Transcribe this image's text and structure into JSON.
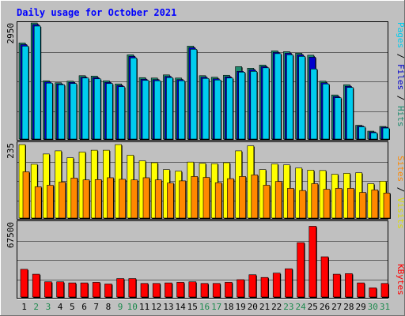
{
  "title": "Daily usage for October 2021",
  "colors": {
    "background": "#c0c0c0",
    "panel": "#c0c0c0",
    "title": "#0000ff",
    "hits": "#1e8a6e",
    "files": "#0000cc",
    "pages": "#00ccee",
    "visits": "#ffff00",
    "sites": "#ff8800",
    "kbytes": "#ff0000",
    "weekday_label": "#000000",
    "weekend_label": "#1e8a4e"
  },
  "right_labels": {
    "top": [
      {
        "text": "Pages",
        "color": "#00ccee"
      },
      {
        "text": " / ",
        "color": "#000000"
      },
      {
        "text": "Files",
        "color": "#0000cc"
      },
      {
        "text": " / ",
        "color": "#000000"
      },
      {
        "text": "Hits",
        "color": "#1e8a6e"
      }
    ],
    "middle": [
      {
        "text": "Sites",
        "color": "#ff8800"
      },
      {
        "text": " / ",
        "color": "#000000"
      },
      {
        "text": "Visits",
        "color": "#dddd00"
      }
    ],
    "bottom": [
      {
        "text": "KBytes",
        "color": "#ff0000"
      }
    ]
  },
  "chart_data": [
    {
      "type": "bar",
      "title": "Daily usage for October 2021",
      "categories": [
        "1",
        "2",
        "3",
        "4",
        "5",
        "6",
        "7",
        "8",
        "9",
        "10",
        "11",
        "12",
        "13",
        "14",
        "15",
        "16",
        "17",
        "18",
        "19",
        "20",
        "21",
        "22",
        "23",
        "24",
        "25",
        "26",
        "27",
        "28",
        "29",
        "30",
        "31"
      ],
      "weekend_days": [
        "2",
        "3",
        "9",
        "10",
        "16",
        "17",
        "23",
        "24",
        "30",
        "31"
      ],
      "ymax_label": "2950",
      "ylim": [
        0,
        2950
      ],
      "series": [
        {
          "name": "Hits",
          "values": [
            2440,
            2950,
            1480,
            1430,
            1470,
            1610,
            1600,
            1480,
            1400,
            2140,
            1560,
            1550,
            1630,
            1550,
            2360,
            1610,
            1570,
            1620,
            1840,
            1800,
            1880,
            2240,
            2220,
            2180,
            2130,
            1470,
            1120,
            1380,
            350,
            200,
            320
          ]
        },
        {
          "name": "Files",
          "values": [
            2400,
            2910,
            1450,
            1400,
            1440,
            1570,
            1560,
            1440,
            1360,
            2100,
            1520,
            1510,
            1590,
            1510,
            2320,
            1570,
            1530,
            1580,
            1720,
            1760,
            1840,
            2200,
            2180,
            2140,
            2080,
            1430,
            1080,
            1340,
            330,
            180,
            300
          ]
        },
        {
          "name": "Pages",
          "values": [
            2360,
            2870,
            1420,
            1380,
            1410,
            1550,
            1530,
            1410,
            1330,
            2060,
            1490,
            1480,
            1560,
            1480,
            2280,
            1540,
            1500,
            1550,
            1700,
            1720,
            1810,
            2170,
            2140,
            2100,
            1780,
            1400,
            1050,
            1310,
            310,
            160,
            280
          ]
        }
      ]
    },
    {
      "type": "bar",
      "categories": [
        "1",
        "2",
        "3",
        "4",
        "5",
        "6",
        "7",
        "8",
        "9",
        "10",
        "11",
        "12",
        "13",
        "14",
        "15",
        "16",
        "17",
        "18",
        "19",
        "20",
        "21",
        "22",
        "23",
        "24",
        "25",
        "26",
        "27",
        "28",
        "29",
        "30",
        "31"
      ],
      "ymax_label": "235",
      "ylim": [
        0,
        235
      ],
      "series": [
        {
          "name": "Visits",
          "values": [
            235,
            172,
            205,
            215,
            193,
            211,
            217,
            217,
            235,
            201,
            183,
            177,
            155,
            150,
            179,
            175,
            174,
            177,
            215,
            231,
            155,
            173,
            170,
            160,
            153,
            152,
            140,
            143,
            145,
            110,
            118
          ]
        },
        {
          "name": "Sites",
          "values": [
            148,
            100,
            105,
            115,
            128,
            122,
            123,
            129,
            124,
            122,
            129,
            122,
            112,
            119,
            133,
            130,
            113,
            126,
            133,
            138,
            105,
            117,
            95,
            88,
            110,
            92,
            95,
            95,
            82,
            90,
            80
          ]
        }
      ]
    },
    {
      "type": "bar",
      "categories": [
        "1",
        "2",
        "3",
        "4",
        "5",
        "6",
        "7",
        "8",
        "9",
        "10",
        "11",
        "12",
        "13",
        "14",
        "15",
        "16",
        "17",
        "18",
        "19",
        "20",
        "21",
        "22",
        "23",
        "24",
        "25",
        "26",
        "27",
        "28",
        "29",
        "30",
        "31"
      ],
      "ymax_label": "67500",
      "ylim": [
        0,
        67500
      ],
      "series": [
        {
          "name": "KBytes",
          "values": [
            25500,
            21000,
            14000,
            14000,
            13000,
            13000,
            13500,
            12000,
            17000,
            17000,
            12500,
            12500,
            13000,
            13500,
            14000,
            12500,
            12500,
            13500,
            16000,
            20500,
            18000,
            22000,
            26000,
            50000,
            65000,
            37000,
            21000,
            21500,
            13000,
            8500,
            12500
          ]
        }
      ]
    }
  ]
}
